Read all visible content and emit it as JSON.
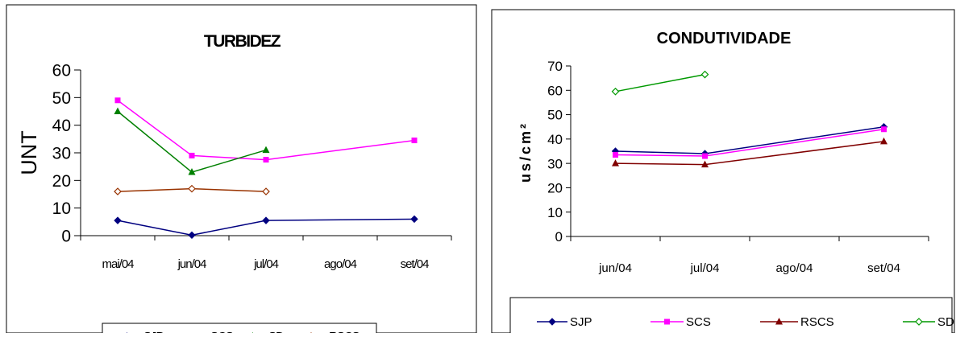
{
  "chart_data": [
    {
      "type": "line",
      "title": "TURBIDEZ",
      "xlabel": "",
      "ylabel": "UNT",
      "ylim": [
        0,
        60
      ],
      "yticks": [
        "0",
        "10",
        "20",
        "30",
        "40",
        "50",
        "60"
      ],
      "categories": [
        "mai/04",
        "jun/04",
        "jul/04",
        "ago/04",
        "set/04"
      ],
      "legend_position": "bottom",
      "grid": false,
      "series": [
        {
          "name": "SJP",
          "color": "#000080",
          "marker": "diamond",
          "values": [
            5.5,
            0.2,
            5.5,
            null,
            6
          ]
        },
        {
          "name": "SCS",
          "color": "#FF00FF",
          "marker": "square",
          "values": [
            49,
            29,
            27.5,
            null,
            34.5
          ]
        },
        {
          "name": "SD",
          "color": "#008000",
          "marker": "triangle",
          "values": [
            45,
            23,
            31,
            null,
            null
          ]
        },
        {
          "name": "RSCS",
          "color": "#993300",
          "marker": "diamond-open",
          "values": [
            16,
            17,
            16,
            null,
            null
          ]
        }
      ]
    },
    {
      "type": "line",
      "title": "CONDUTIVIDADE",
      "xlabel": "",
      "ylabel": "us/cm²",
      "ylim": [
        0,
        70
      ],
      "yticks": [
        "0",
        "10",
        "20",
        "30",
        "40",
        "50",
        "60",
        "70"
      ],
      "categories": [
        "jun/04",
        "jul/04",
        "ago/04",
        "set/04"
      ],
      "legend_position": "bottom",
      "grid": false,
      "series": [
        {
          "name": "SJP",
          "color": "#000080",
          "marker": "diamond",
          "values": [
            35,
            34,
            null,
            45
          ]
        },
        {
          "name": "SCS",
          "color": "#FF00FF",
          "marker": "square",
          "values": [
            33.5,
            33,
            null,
            44
          ]
        },
        {
          "name": "RSCS",
          "color": "#800000",
          "marker": "triangle",
          "values": [
            30,
            29.5,
            null,
            39
          ]
        },
        {
          "name": "SD",
          "color": "#009900",
          "marker": "diamond-open",
          "values": [
            59.5,
            66.5,
            null,
            null
          ]
        }
      ]
    }
  ]
}
